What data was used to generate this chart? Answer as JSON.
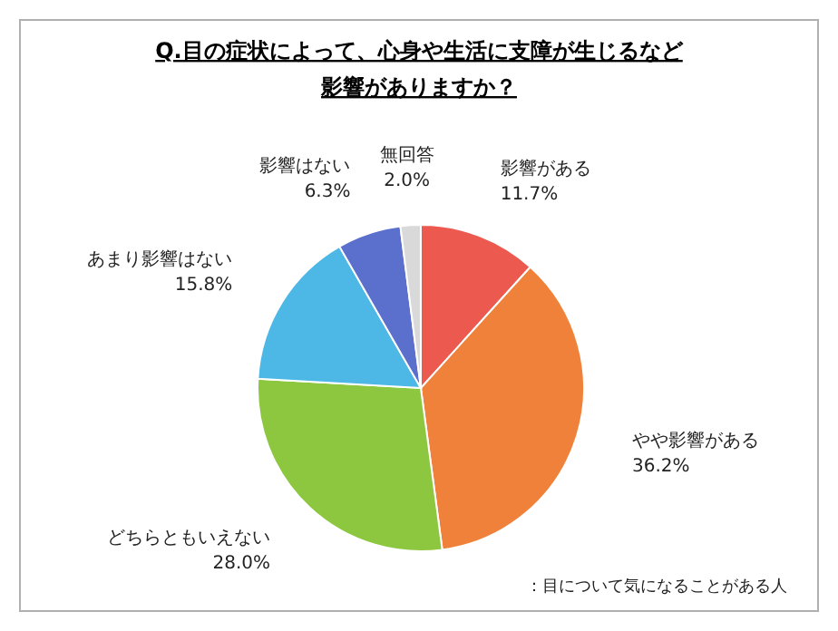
{
  "chart_data": {
    "type": "pie",
    "title": "Q.目の症状によって、心身や生活に支障が生じるなど影響がありますか？",
    "categories": [
      "影響がある",
      "やや影響がある",
      "どちらともいえない",
      "あまり影響はない",
      "影響はない",
      "無回答"
    ],
    "values": [
      11.7,
      36.2,
      28.0,
      15.8,
      6.3,
      2.0
    ],
    "value_labels": [
      "11.7%",
      "36.2%",
      "28.0%",
      "15.8%",
      "6.3%",
      "2.0%"
    ],
    "colors": [
      "#ec5a4f",
      "#f0813a",
      "#8dc63f",
      "#4db8e6",
      "#5b6fcc",
      "#d9d9d9"
    ],
    "annotations": [
      "：目について気になることがある人"
    ]
  }
}
